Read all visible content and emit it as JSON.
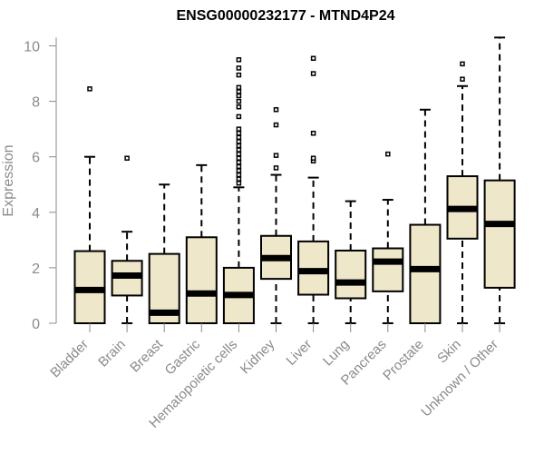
{
  "chart_data": {
    "type": "boxplot",
    "title": "ENSG00000232177 - MTND4P24",
    "xlabel": "",
    "ylabel": "Expression",
    "ylim": [
      0,
      10.3
    ],
    "yticks": [
      0,
      2,
      4,
      6,
      8,
      10
    ],
    "categories": [
      "Bladder",
      "Brain",
      "Breast",
      "Gastric",
      "Hematopoietic cells",
      "Kidney",
      "Liver",
      "Lung",
      "Pancreas",
      "Prostate",
      "Skin",
      "Unknown / Other"
    ],
    "series": [
      {
        "name": "Bladder",
        "min": 0,
        "q1": 0,
        "median": 1.2,
        "q3": 2.6,
        "max": 6.0,
        "outliers": [
          8.45
        ]
      },
      {
        "name": "Brain",
        "min": 0,
        "q1": 1.0,
        "median": 1.72,
        "q3": 2.25,
        "max": 3.3,
        "outliers": [
          5.95
        ]
      },
      {
        "name": "Breast",
        "min": 0,
        "q1": 0,
        "median": 0.38,
        "q3": 2.5,
        "max": 5.0,
        "outliers": []
      },
      {
        "name": "Gastric",
        "min": 0,
        "q1": 0,
        "median": 1.07,
        "q3": 3.1,
        "max": 5.7,
        "outliers": []
      },
      {
        "name": "Hematopoietic cells",
        "min": 0,
        "q1": 0,
        "median": 1.02,
        "q3": 2.0,
        "max": 4.9,
        "outliers": [
          5.05,
          5.2,
          5.35,
          5.5,
          5.65,
          5.8,
          5.95,
          6.1,
          6.25,
          6.4,
          6.55,
          6.7,
          6.85,
          7.0,
          7.45,
          7.8,
          8.0,
          8.2,
          8.35,
          8.5,
          8.95,
          9.2,
          9.5
        ]
      },
      {
        "name": "Kidney",
        "min": 0,
        "q1": 1.6,
        "median": 2.35,
        "q3": 3.15,
        "max": 5.35,
        "outliers": [
          5.6,
          6.05,
          7.15,
          7.7
        ]
      },
      {
        "name": "Liver",
        "min": 0,
        "q1": 1.03,
        "median": 1.88,
        "q3": 2.95,
        "max": 5.25,
        "outliers": [
          5.85,
          5.95,
          6.85,
          9.0,
          9.55
        ]
      },
      {
        "name": "Lung",
        "min": 0,
        "q1": 0.9,
        "median": 1.47,
        "q3": 2.62,
        "max": 4.4,
        "outliers": []
      },
      {
        "name": "Pancreas",
        "min": 0,
        "q1": 1.15,
        "median": 2.22,
        "q3": 2.7,
        "max": 4.45,
        "outliers": [
          6.1
        ]
      },
      {
        "name": "Prostate",
        "min": 0,
        "q1": 0,
        "median": 1.95,
        "q3": 3.55,
        "max": 7.7,
        "outliers": []
      },
      {
        "name": "Skin",
        "min": 0,
        "q1": 3.05,
        "median": 4.12,
        "q3": 5.3,
        "max": 8.55,
        "outliers": [
          8.8,
          9.35
        ]
      },
      {
        "name": "Unknown / Other",
        "min": 0,
        "q1": 1.28,
        "median": 3.58,
        "q3": 5.15,
        "max": 10.3,
        "outliers": []
      }
    ],
    "grid": false,
    "legend": "none",
    "colors": {
      "box_fill": "#efe7ca",
      "box_stroke": "#000000",
      "median": "#000000",
      "whisker": "#000000",
      "axis": "#8a8a8a",
      "text": "#8a8a8a"
    }
  }
}
